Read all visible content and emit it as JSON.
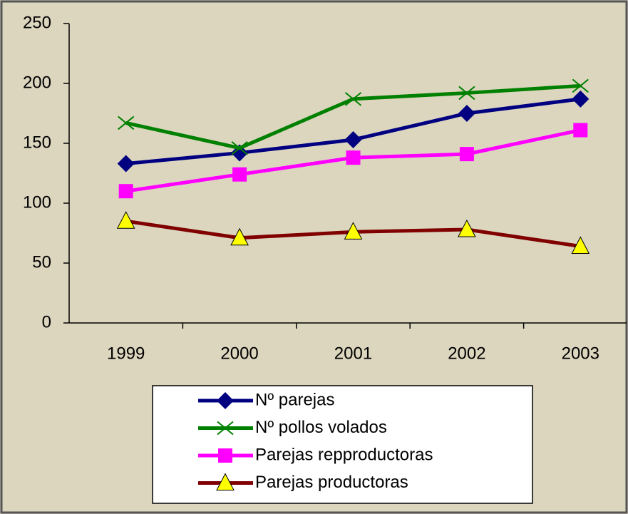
{
  "chart_data": {
    "type": "line",
    "categories": [
      "1999",
      "2000",
      "2001",
      "2002",
      "2003"
    ],
    "series": [
      {
        "name": "Nº parejas",
        "color": "#000080",
        "marker": "diamond",
        "values": [
          133,
          142,
          153,
          175,
          187
        ]
      },
      {
        "name": "Nº pollos volados",
        "color": "#008000",
        "marker": "cross",
        "values": [
          167,
          146,
          187,
          192,
          198
        ]
      },
      {
        "name": "Parejas repproductoras",
        "color": "#ff00ff",
        "marker": "square",
        "values": [
          110,
          124,
          138,
          141,
          161
        ]
      },
      {
        "name": "Parejas productoras",
        "color": "#800000",
        "marker": "triangle",
        "values": [
          85,
          71,
          76,
          78,
          64
        ]
      }
    ],
    "ylim": [
      0,
      250
    ],
    "yticks": [
      0,
      50,
      100,
      150,
      200,
      250
    ],
    "grid": false,
    "legend": "bottom"
  }
}
